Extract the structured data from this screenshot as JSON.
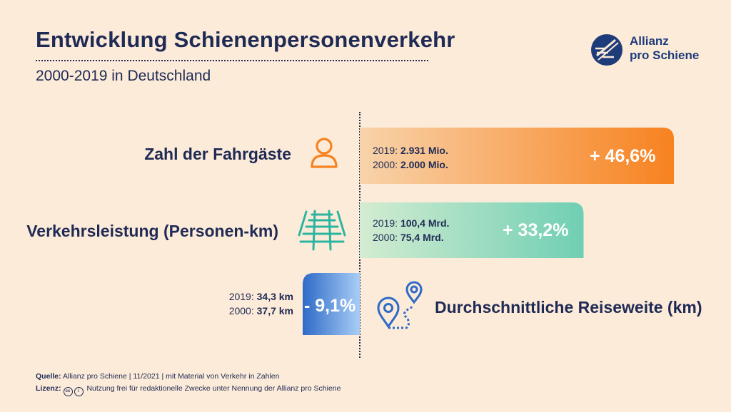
{
  "title": "Entwicklung Schienenpersonenverkehr",
  "subtitle": "2000-2019 in Deutschland",
  "logo": {
    "line1": "Allianz",
    "line2": "pro Schiene"
  },
  "chart_data": {
    "type": "bar",
    "categories": [
      "Zahl der Fahrgäste",
      "Verkehrsleistung (Personen-km)",
      "Durchschnittliche Reiseweite (km)"
    ],
    "values": [
      46.6,
      33.2,
      -9.1
    ],
    "value_labels": [
      "+ 46,6%",
      "+ 33,2%",
      "- 9,1%"
    ],
    "details": [
      {
        "y2019_label": "2019:",
        "y2019_value": "2.931 Mio.",
        "y2000_label": "2000:",
        "y2000_value": "2.000 Mio."
      },
      {
        "y2019_label": "2019:",
        "y2019_value": "100,4 Mrd.",
        "y2000_label": "2000:",
        "y2000_value": "75,4 Mrd."
      },
      {
        "y2019_label": "2019:",
        "y2019_value": "34,3 km",
        "y2000_label": "2000:",
        "y2000_value": "37,7 km"
      }
    ],
    "colors": [
      "#f7821f",
      "#73d0b5",
      "#2e6bc7"
    ],
    "icons": [
      "person-icon",
      "railway-track-icon",
      "map-pins-route-icon"
    ]
  },
  "footer": {
    "source_label": "Quelle:",
    "source_text": "Allianz pro Schiene | 11/2021 | mit Material von Verkehr in Zahlen",
    "license_label": "Lizenz:",
    "license_cc": "cc",
    "license_text": "Nutzung frei für redaktionelle Zwecke unter Nennung der Allianz pro Schiene"
  }
}
